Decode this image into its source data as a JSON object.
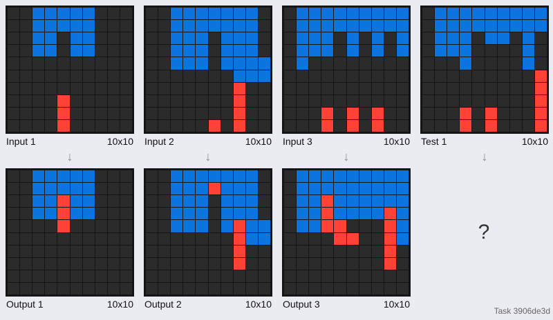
{
  "colors": {
    "0": "#2b2b2b",
    "1": "#0b74de",
    "2": "#ff4136"
  },
  "panels": [
    {
      "label": "Input 1",
      "size": "10x10",
      "grid": [
        "0011111000",
        "0011111000",
        "0011011000",
        "0011011000",
        "0000000000",
        "0000000000",
        "0000000000",
        "0000200000",
        "0000200000",
        "0000200000"
      ]
    },
    {
      "label": "Input 2",
      "size": "10x10",
      "grid": [
        "0011111110",
        "0011111110",
        "0011101110",
        "0011101110",
        "0011101111",
        "0000000111",
        "0000000200",
        "0000000200",
        "0000000200",
        "0000020200"
      ]
    },
    {
      "label": "Input 3",
      "size": "10x10",
      "grid": [
        "0111111111",
        "0111111111",
        "0111010101",
        "0111010101",
        "0100000000",
        "0000000000",
        "0000000000",
        "0000000000",
        "0002020200",
        "0002020200"
      ]
    },
    {
      "label": "Test 1",
      "size": "10x10",
      "grid": [
        "0111111111",
        "0111111111",
        "0111011010",
        "0111000010",
        "0001000010",
        "0000000002",
        "0000000002",
        "0000000002",
        "0002020002",
        "0002020002"
      ]
    },
    {
      "label": "Output 1",
      "size": "10x10",
      "grid": [
        "0011111000",
        "0011111000",
        "0011211000",
        "0011211000",
        "0000200000",
        "0000000000",
        "0000000000",
        "0000000000",
        "0000000000",
        "0000000000"
      ]
    },
    {
      "label": "Output 2",
      "size": "10x10",
      "grid": [
        "0011111110",
        "0011121110",
        "0011101110",
        "0011101110",
        "0011101211",
        "0000000211",
        "0000000200",
        "0000000200",
        "0000000000",
        "0000000000"
      ]
    },
    {
      "label": "Output 3",
      "size": "10x10",
      "grid": [
        "0111111111",
        "0111111111",
        "0112111111",
        "0112111121",
        "0112200021",
        "0000220021",
        "0000000020",
        "0000000020",
        "0000000000",
        "0000000000"
      ]
    }
  ],
  "question_mark": "?",
  "arrow_glyph": "↓",
  "task_label": "Task 3906de3d"
}
